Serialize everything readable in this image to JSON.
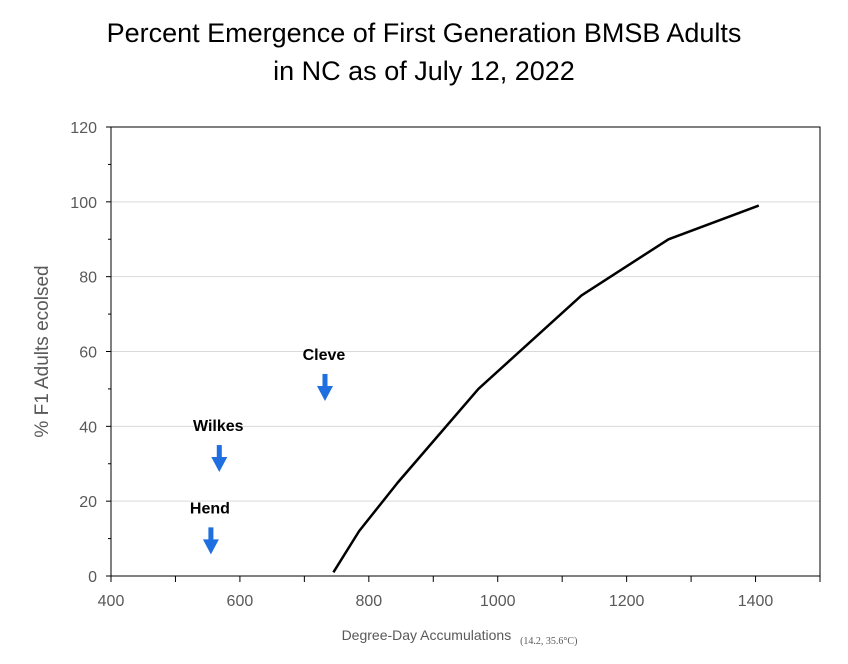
{
  "chart_data": {
    "type": "line",
    "title_line1": "Percent Emergence of First Generation BMSB Adults",
    "title_line2": "in NC as of July 12, 2022",
    "xlabel": "Degree-Day Accumulations",
    "xlabel_sub": "(14.2, 35.6°C)",
    "ylabel": "% F1 Adults ecolsed",
    "xlim": [
      400,
      1500
    ],
    "ylim": [
      0,
      120
    ],
    "x_ticks": [
      400,
      600,
      800,
      1000,
      1200,
      1400
    ],
    "y_ticks": [
      0,
      20,
      40,
      60,
      80,
      100,
      120
    ],
    "grid": true,
    "series": [
      {
        "x": [
          745,
          785,
          845,
          970,
          1130,
          1265,
          1405
        ],
        "y": [
          1,
          12,
          25,
          50,
          75,
          90,
          99
        ],
        "color": "#000000"
      }
    ],
    "annotations": [
      {
        "label": "Cleve",
        "x": 732,
        "y": 54,
        "arrow_color": "#1f6fe0"
      },
      {
        "label": "Wilkes",
        "x": 568,
        "y": 35,
        "arrow_color": "#1f6fe0"
      },
      {
        "label": "Hend",
        "x": 555,
        "y": 13,
        "arrow_color": "#1f6fe0"
      }
    ]
  }
}
